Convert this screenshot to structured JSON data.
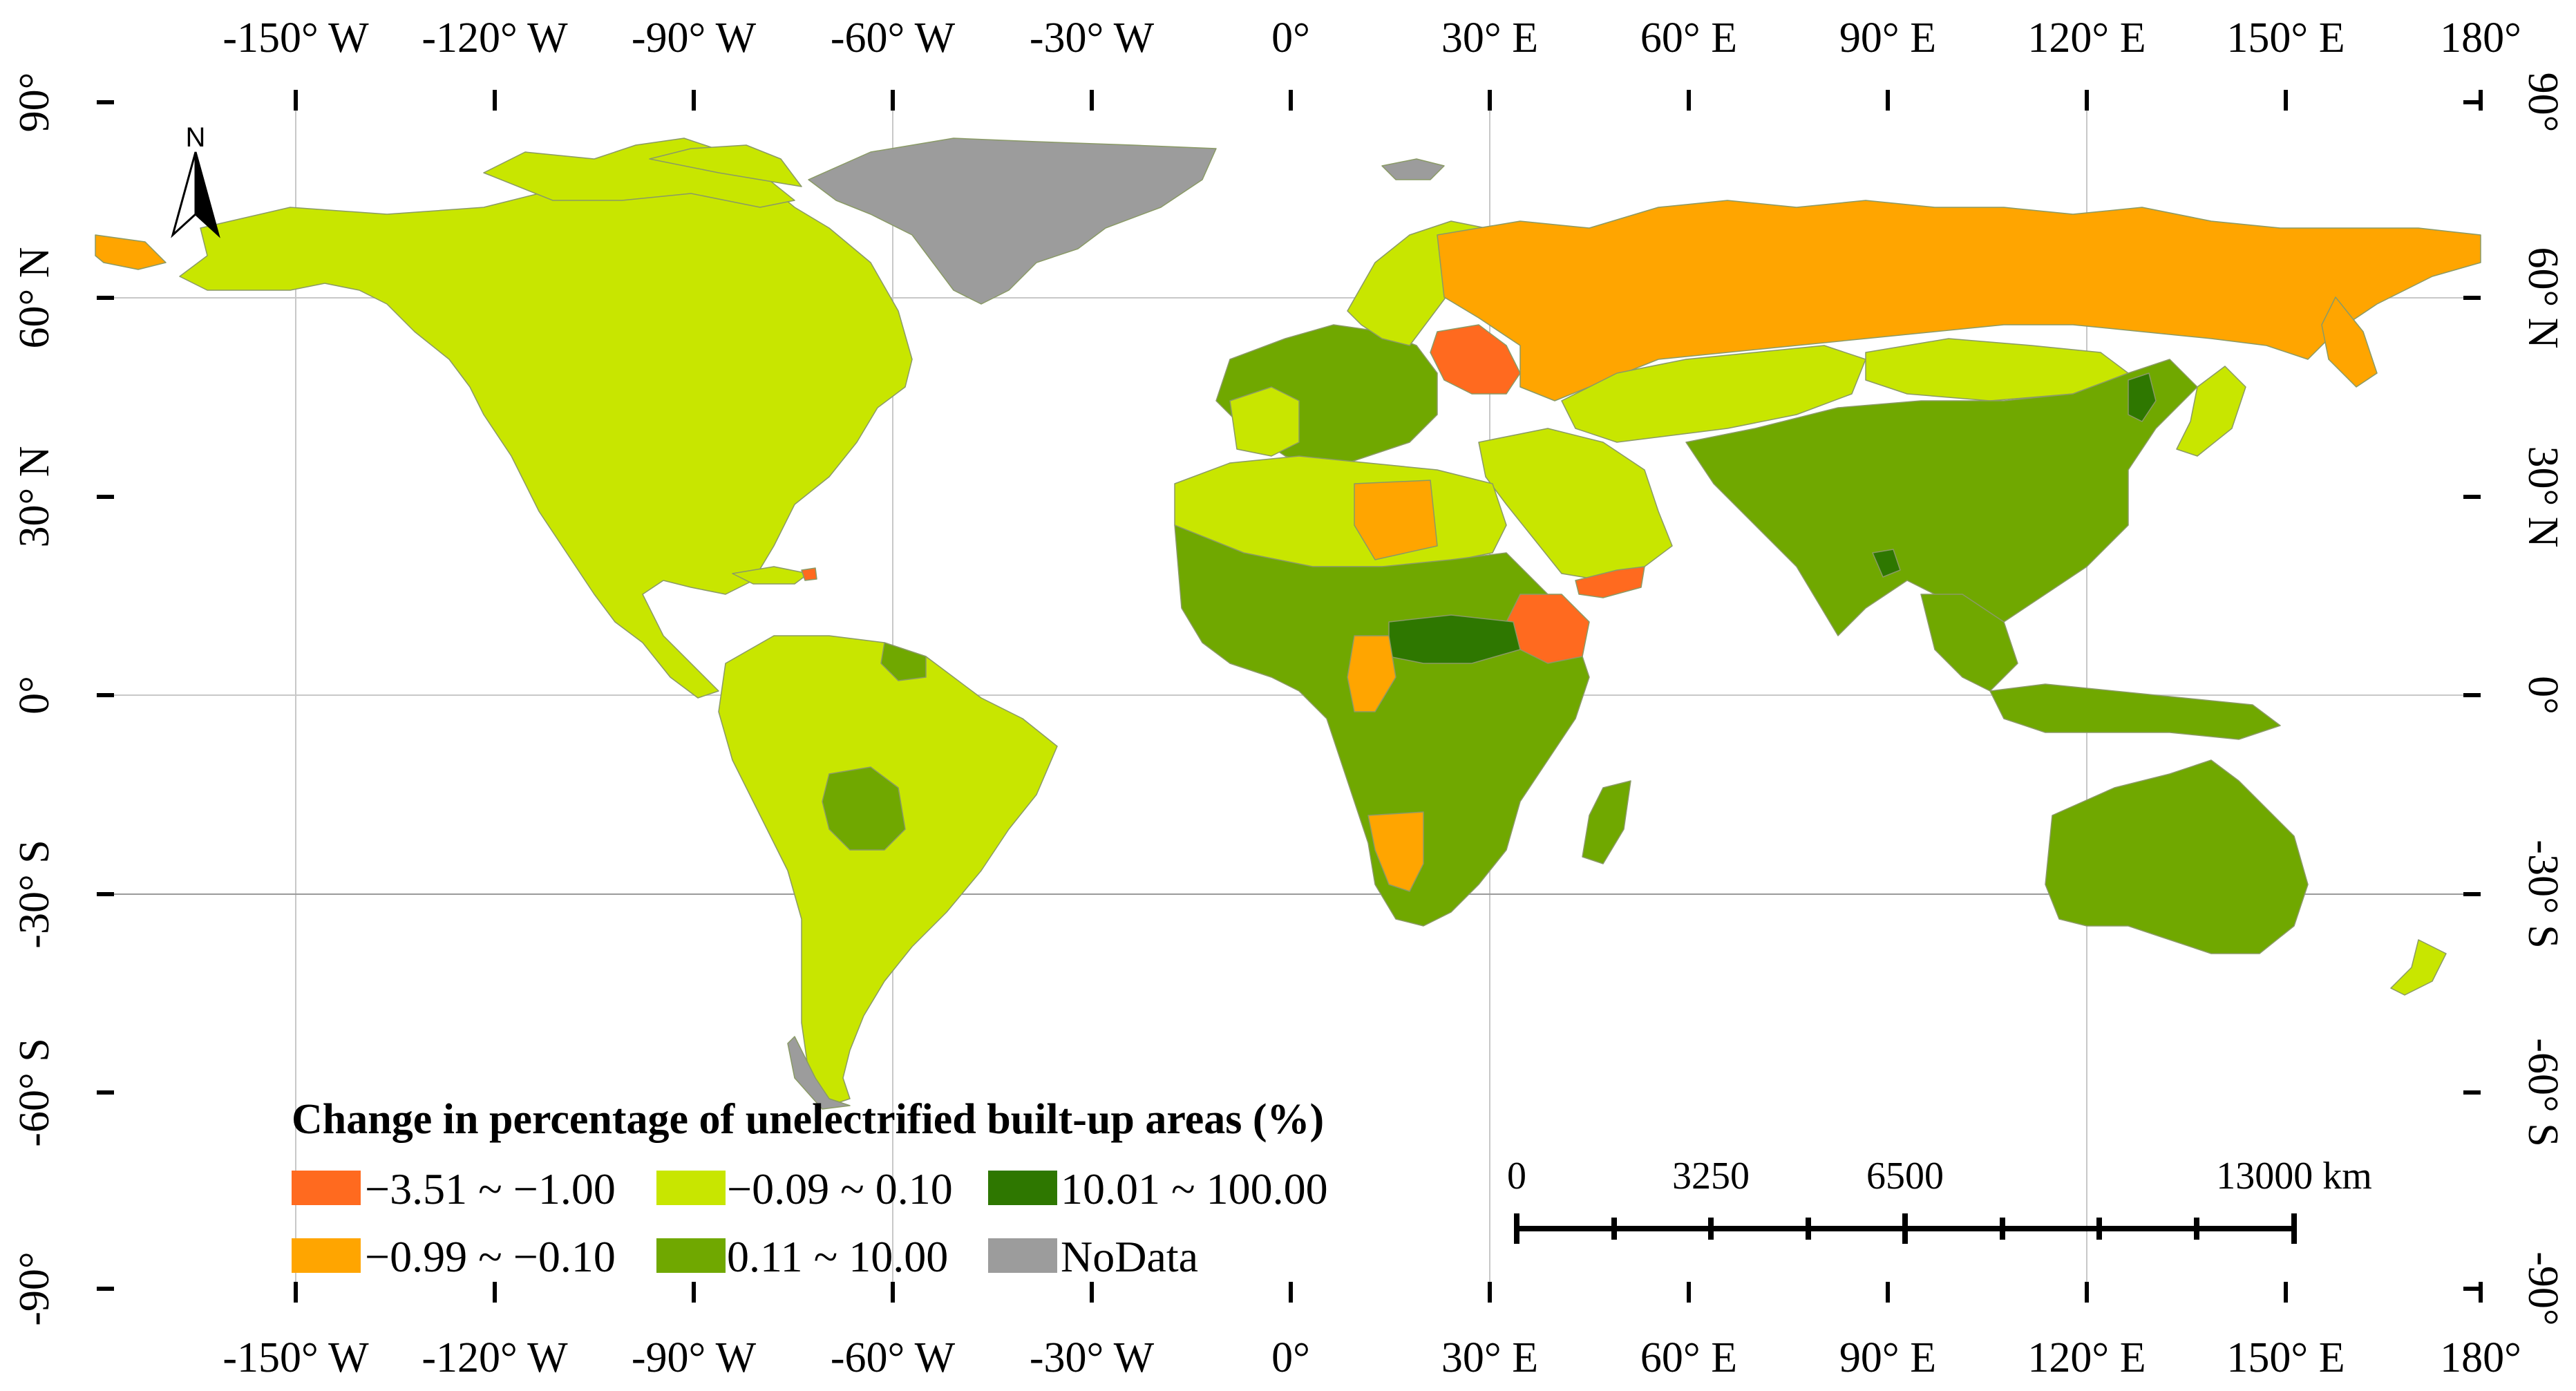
{
  "colors": {
    "c1": "#ff6a1f",
    "c2": "#ffa500",
    "c3": "#c8e600",
    "c4": "#70a800",
    "c5": "#2e7700",
    "nodata": "#9c9c9c",
    "grid": "#c8c8c8"
  },
  "axes": {
    "top_labels": [
      "-150° W",
      "-120° W",
      "-90° W",
      "-60° W",
      "-30° W",
      "0°",
      "30° E",
      "60° E",
      "90° E",
      "120° E",
      "150° E",
      "180°"
    ],
    "bottom_labels": [
      "-150° W",
      "-120° W",
      "-90° W",
      "-60° W",
      "-30° W",
      "0°",
      "30° E",
      "60° E",
      "90° E",
      "120° E",
      "150° E",
      "180°"
    ],
    "left_labels": [
      "90°",
      "60° N",
      "30° N",
      "0°",
      "-30° S",
      "-60° S",
      "-90°"
    ],
    "right_labels": [
      "90°",
      "60° N",
      "30° N",
      "0°",
      "-30° S",
      "-60° S",
      "-90°"
    ]
  },
  "legend": {
    "title": "Change in percentage of unelectrified built-up areas (%)",
    "items": [
      {
        "label": "−3.51 ~ −1.00",
        "color": "#ff6a1f"
      },
      {
        "label": "−0.09 ~ 0.10",
        "color": "#c8e600"
      },
      {
        "label": "10.01 ~ 100.00",
        "color": "#2e7700"
      },
      {
        "label": "−0.99 ~ −0.10",
        "color": "#ffa500"
      },
      {
        "label": "0.11 ~ 10.00",
        "color": "#70a800"
      },
      {
        "label": "NoData",
        "color": "#9c9c9c"
      }
    ]
  },
  "scale_bar": {
    "labels": [
      "0",
      "3250",
      "6500",
      "13000 km"
    ]
  },
  "north_arrow": {
    "label": "N",
    "icon": "north-arrow-icon"
  }
}
